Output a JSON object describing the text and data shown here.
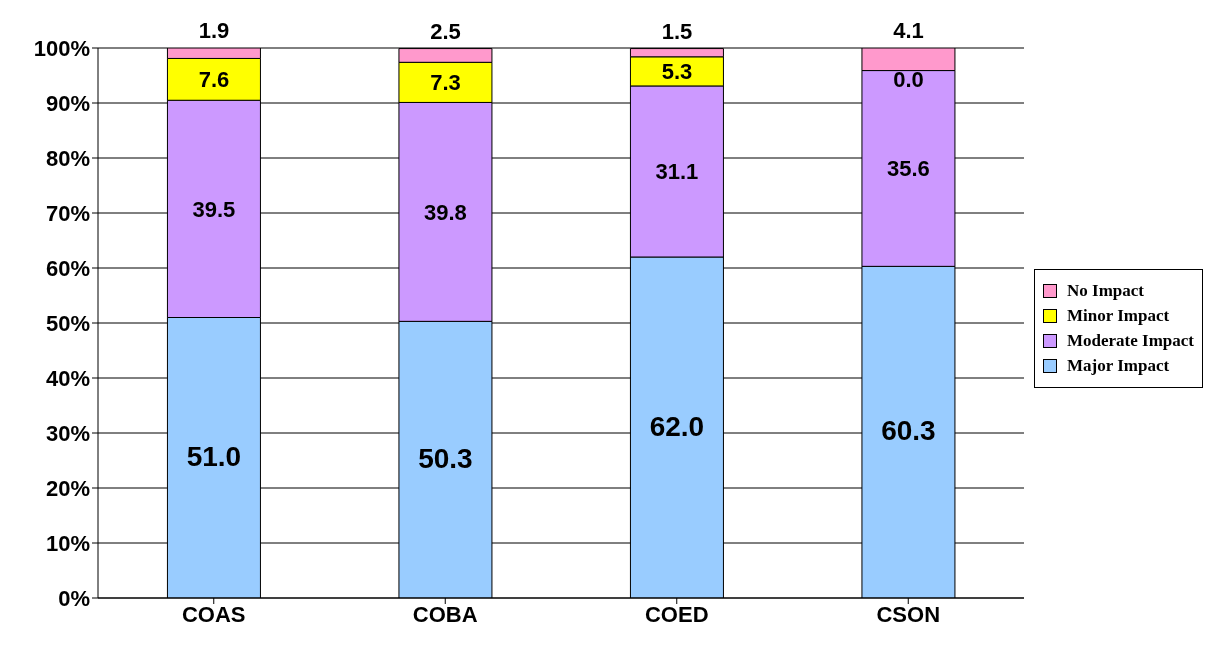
{
  "chart_data": {
    "type": "bar",
    "stacked": true,
    "categories": [
      "COAS",
      "COBA",
      "COED",
      "CSON"
    ],
    "series": [
      {
        "name": "Major Impact",
        "color": "#99ccff",
        "values": [
          51.0,
          50.3,
          62.0,
          60.3
        ],
        "value_labels": [
          "51.0",
          "50.3",
          "62.0",
          "60.3"
        ]
      },
      {
        "name": "Moderate Impact",
        "color": "#cc99ff",
        "values": [
          39.5,
          39.8,
          31.1,
          35.6
        ],
        "value_labels": [
          "39.5",
          "39.8",
          "31.1",
          "35.6"
        ]
      },
      {
        "name": "Minor Impact",
        "color": "#ffff00",
        "values": [
          7.6,
          7.3,
          5.3,
          0.0
        ],
        "value_labels": [
          "7.6",
          "7.3",
          "5.3",
          "0.0"
        ]
      },
      {
        "name": "No Impact",
        "color": "#ff99cc",
        "values": [
          1.9,
          2.5,
          1.5,
          4.1
        ],
        "value_labels": [
          "1.9",
          "2.5",
          "1.5",
          "4.1"
        ]
      }
    ],
    "ylim": [
      0,
      100
    ],
    "yticks": [
      {
        "value": 0,
        "label": "0%"
      },
      {
        "value": 10,
        "label": "10%"
      },
      {
        "value": 20,
        "label": "20%"
      },
      {
        "value": 30,
        "label": "30%"
      },
      {
        "value": 40,
        "label": "40%"
      },
      {
        "value": 50,
        "label": "50%"
      },
      {
        "value": 60,
        "label": "60%"
      },
      {
        "value": 70,
        "label": "70%"
      },
      {
        "value": 80,
        "label": "80%"
      },
      {
        "value": 90,
        "label": "90%"
      },
      {
        "value": 100,
        "label": "100%"
      }
    ],
    "grid": "y",
    "legend": "right"
  }
}
